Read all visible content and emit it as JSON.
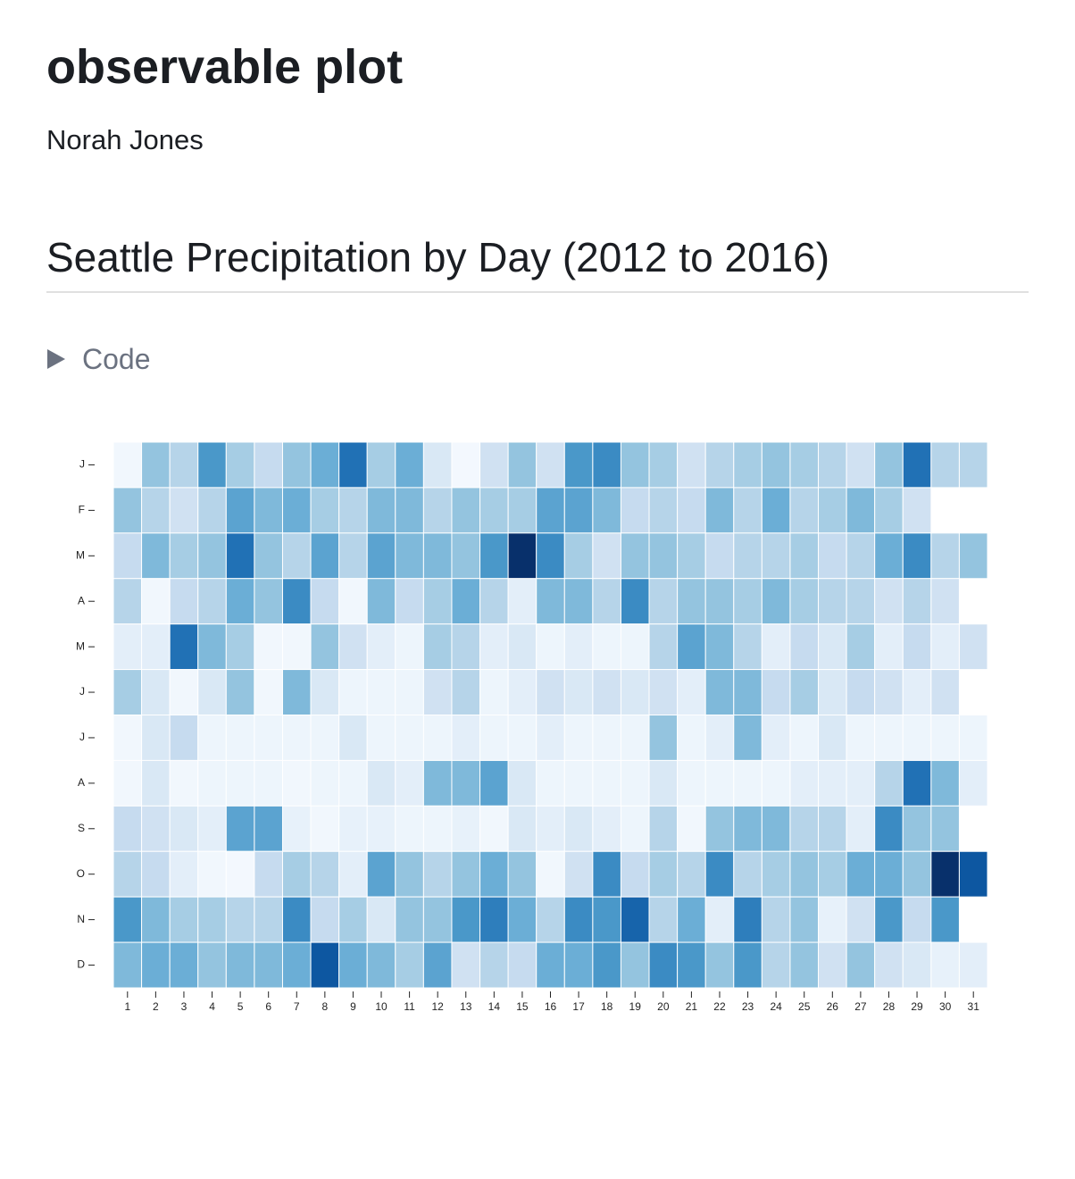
{
  "header": {
    "title": "observable plot",
    "author": "Norah Jones"
  },
  "section": {
    "title": "Seattle Precipitation by Day (2012 to 2016)",
    "code_toggle": "Code"
  },
  "chart_data": {
    "type": "heatmap",
    "y_categories": [
      "J",
      "F",
      "M",
      "A",
      "M",
      "J",
      "J",
      "A",
      "S",
      "O",
      "N",
      "D"
    ],
    "x_categories": [
      1,
      2,
      3,
      4,
      5,
      6,
      7,
      8,
      9,
      10,
      11,
      12,
      13,
      14,
      15,
      16,
      17,
      18,
      19,
      20,
      21,
      22,
      23,
      24,
      25,
      26,
      27,
      28,
      29,
      30,
      31
    ],
    "zlim": [
      0,
      10
    ],
    "colors": [
      "#f7fbff",
      "#deebf7",
      "#c6dbef",
      "#9ecae1",
      "#6baed6",
      "#4292c6",
      "#2171b5",
      "#08519c",
      "#08306b"
    ],
    "values": [
      [
        0.3,
        4,
        3,
        6,
        3.5,
        2.5,
        4,
        5,
        7.5,
        3.5,
        5,
        1.5,
        0.2,
        2,
        4,
        2,
        6,
        6.5,
        4,
        3.5,
        2,
        3,
        3.5,
        4,
        3.5,
        3,
        2,
        4,
        7.5,
        3,
        3
      ],
      [
        4,
        3,
        2,
        3,
        5.5,
        4.5,
        5,
        3.5,
        3,
        4.5,
        4.5,
        3,
        4,
        3.5,
        3.5,
        5.5,
        5.5,
        4.5,
        2.5,
        3,
        2.5,
        4.5,
        3,
        5,
        3,
        3.5,
        4.5,
        3.5,
        2,
        null,
        null
      ],
      [
        2.5,
        4.5,
        3.5,
        4,
        7.5,
        4,
        3,
        5.5,
        3,
        5.5,
        4.5,
        4.5,
        4,
        6,
        10,
        6.5,
        3.5,
        2,
        4,
        4,
        3.5,
        2.5,
        3,
        3,
        3.5,
        2.5,
        3,
        5,
        6.5,
        3,
        4
      ],
      [
        3,
        0.3,
        2.5,
        3,
        5,
        4,
        6.5,
        2.5,
        0.3,
        4.5,
        2.5,
        3.5,
        5,
        3,
        1,
        4.5,
        4.5,
        3,
        6.5,
        3,
        4,
        4,
        3.5,
        4.5,
        3.5,
        3,
        3,
        2,
        3,
        2,
        null
      ],
      [
        1,
        1,
        7.5,
        4.5,
        3.5,
        0.3,
        0.3,
        4,
        2,
        1,
        0.5,
        3.5,
        3,
        1,
        1.5,
        0.5,
        1,
        0.5,
        0.5,
        3,
        5.5,
        4.5,
        3,
        1,
        2.5,
        1.5,
        3.5,
        1,
        2.5,
        1,
        2
      ],
      [
        3.5,
        1.5,
        0.3,
        1.5,
        4,
        0.3,
        4.5,
        1.5,
        0.5,
        0.5,
        0.5,
        2,
        3,
        0.5,
        1,
        2,
        1.5,
        2,
        1.5,
        2,
        1,
        4.5,
        4.5,
        2.5,
        3.5,
        1.5,
        2.5,
        2,
        1,
        2,
        null
      ],
      [
        0.3,
        1.5,
        2.5,
        0.5,
        0.5,
        0.5,
        0.5,
        0.5,
        1.5,
        0.5,
        0.5,
        0.5,
        1,
        0.5,
        0.5,
        1,
        0.5,
        0.5,
        0.5,
        4,
        0.5,
        1,
        4.5,
        1,
        0.5,
        1.5,
        0.5,
        0.5,
        0.5,
        0.5,
        0.5
      ],
      [
        0.3,
        1.5,
        0.3,
        0.5,
        0.5,
        0.5,
        0.3,
        0.5,
        0.5,
        1.5,
        1,
        4.5,
        4.5,
        5.5,
        1.5,
        0.5,
        0.5,
        0.5,
        0.5,
        1.5,
        0.5,
        0.5,
        0.5,
        0.5,
        1,
        1,
        1,
        3,
        7.5,
        4.5,
        1
      ],
      [
        2.5,
        2,
        1.5,
        1,
        5.5,
        5.5,
        0.8,
        0.3,
        0.8,
        0.8,
        0.5,
        0.5,
        0.8,
        0.3,
        1.5,
        1,
        1.5,
        1,
        0.5,
        3,
        0.3,
        4,
        4.5,
        4.5,
        3,
        3,
        1,
        6.5,
        4,
        4,
        null
      ],
      [
        3,
        2.5,
        1,
        0.3,
        0.2,
        2.5,
        3.5,
        3,
        1,
        5.5,
        4,
        3,
        4,
        5,
        4,
        0.3,
        2,
        6.5,
        2.5,
        3.5,
        3,
        6.5,
        3,
        3.5,
        4,
        3.5,
        5,
        5,
        4,
        10,
        8.5
      ],
      [
        6,
        4.5,
        3.5,
        3.5,
        3,
        3,
        6.5,
        2.5,
        3.5,
        1.5,
        4,
        4,
        6,
        7,
        5,
        3,
        6.5,
        6,
        8,
        3,
        5,
        1,
        7,
        3,
        4,
        0.8,
        2,
        6,
        2.5,
        6,
        null
      ],
      [
        4.5,
        5,
        5,
        4,
        4.5,
        4.5,
        5,
        8.5,
        5,
        4.5,
        3.5,
        5.5,
        2,
        3,
        2.5,
        5,
        5,
        6,
        4,
        6.5,
        6,
        4,
        6,
        3,
        4,
        2,
        4,
        2,
        1.5,
        0.8,
        1
      ]
    ]
  }
}
